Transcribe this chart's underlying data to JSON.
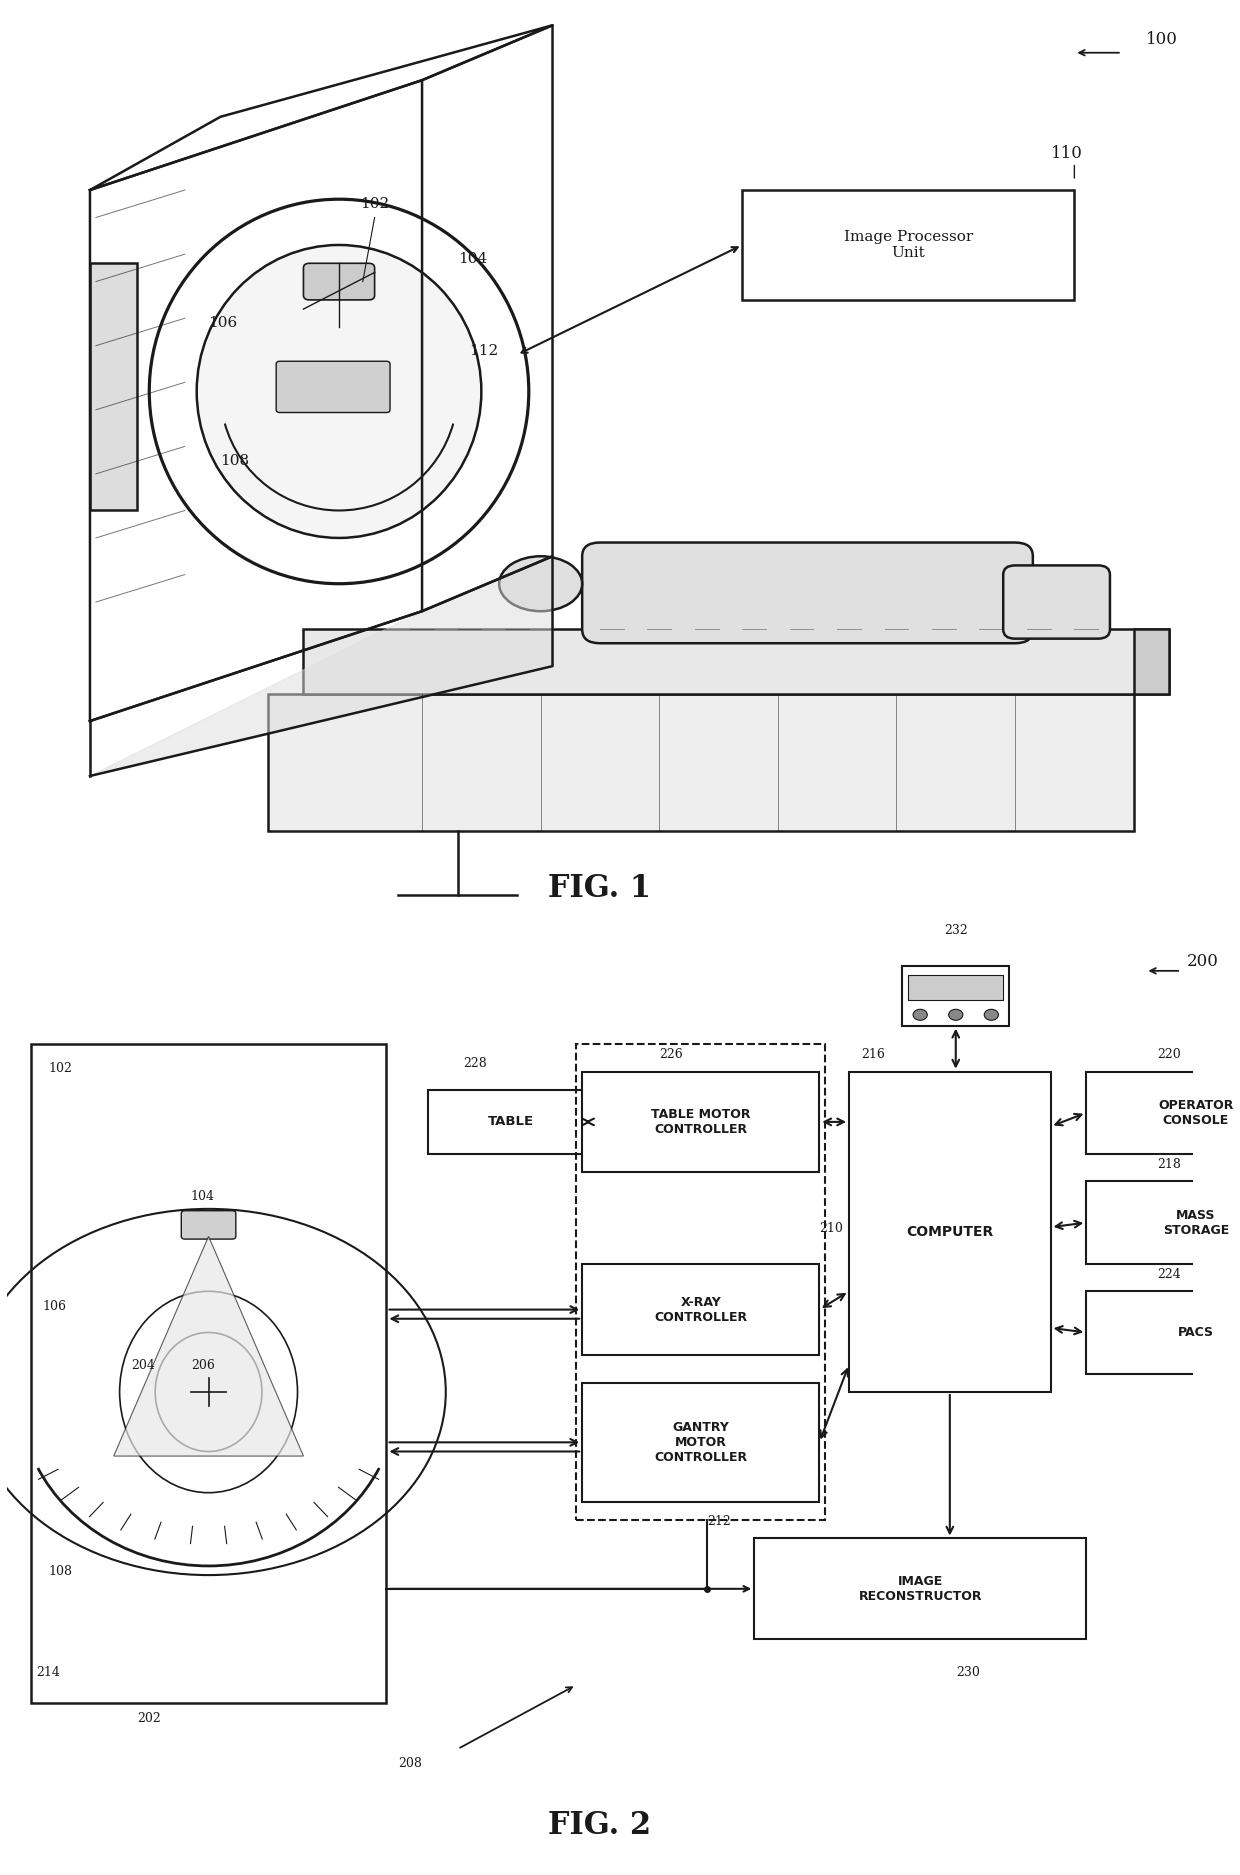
{
  "fig1_label": "FIG. 1",
  "fig2_label": "FIG. 2",
  "background_color": "#ffffff",
  "line_color": "#1a1a1a",
  "fig1_ref_100": "100",
  "fig1_ref_110": "110",
  "fig1_ref_102": "102",
  "fig1_ref_104": "104",
  "fig1_ref_106": "106",
  "fig1_ref_108": "108",
  "fig1_ref_112": "112",
  "fig1_box_text": "Image Processor\nUnit",
  "fig2_ref_200": "200",
  "fig2_ref_102": "102",
  "fig2_ref_104": "104",
  "fig2_ref_106": "106",
  "fig2_ref_108": "108",
  "fig2_ref_202": "202",
  "fig2_ref_204": "204",
  "fig2_ref_206": "206",
  "fig2_ref_208": "208",
  "fig2_ref_210": "210",
  "fig2_ref_212": "212",
  "fig2_ref_214": "214",
  "fig2_ref_216": "216",
  "fig2_ref_218": "218",
  "fig2_ref_220": "220",
  "fig2_ref_224": "224",
  "fig2_ref_226": "226",
  "fig2_ref_228": "228",
  "fig2_ref_230": "230",
  "fig2_ref_232": "232",
  "fig2_table_text": "TABLE",
  "fig2_tmc_text": "TABLE MOTOR\nCONTROLLER",
  "fig2_xray_text": "X-RAY\nCONTROLLER",
  "fig2_gmc_text": "GANTRY\nMOTOR\nCONTROLLER",
  "fig2_computer_text": "COMPUTER",
  "fig2_216_text": "216",
  "fig2_operator_text": "OPERATOR\nCONSOLE",
  "fig2_mass_text": "MASS\nSTORAGE",
  "fig2_pacs_text": "PACS",
  "fig2_image_rec_text": "IMAGE\nRECONSTRUCTOR"
}
